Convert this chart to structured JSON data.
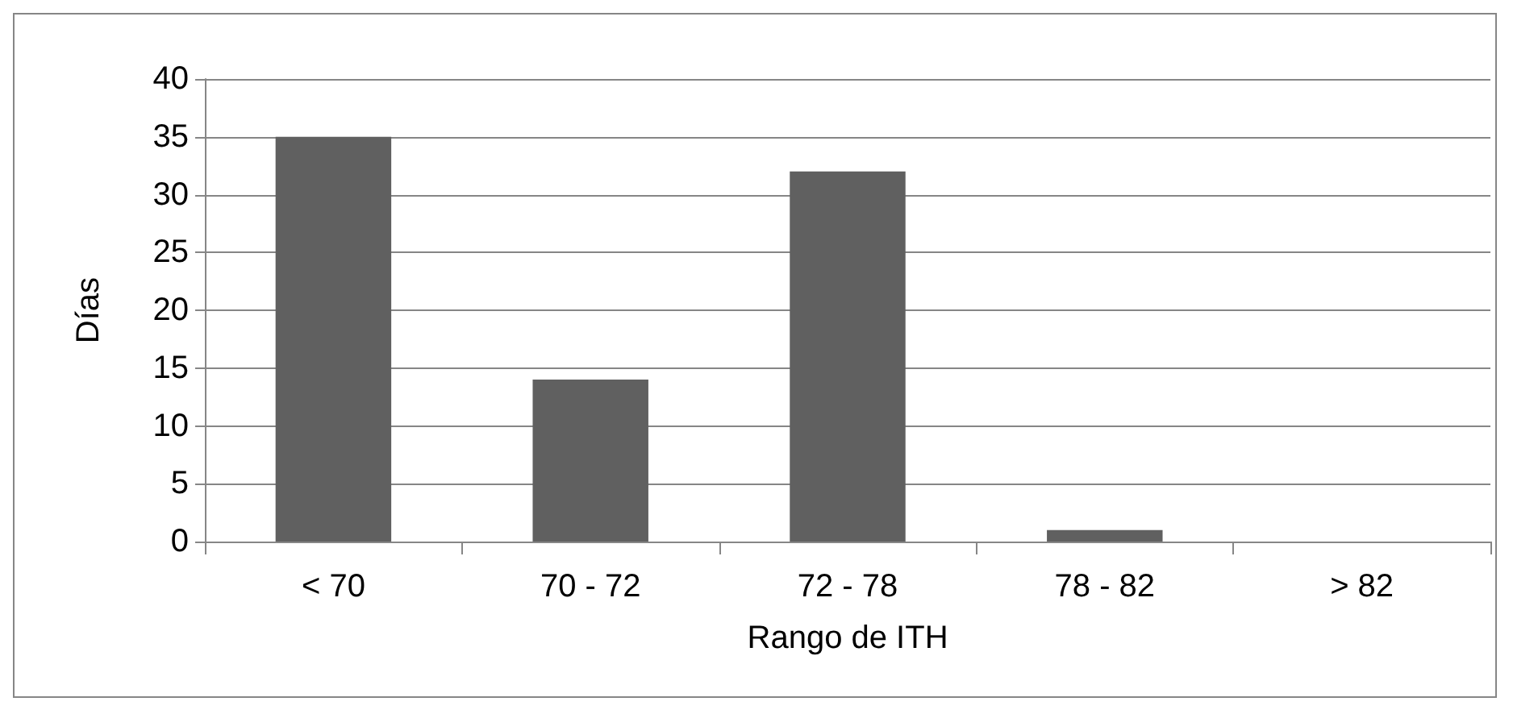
{
  "chart_data": {
    "type": "bar",
    "xlabel": "Rango de ITH",
    "ylabel": "Días",
    "categories": [
      "< 70",
      "70 - 72",
      "72 - 78",
      "78 - 82",
      "> 82"
    ],
    "values": [
      35,
      14,
      32,
      1,
      0
    ],
    "color": "#606060",
    "ylim": [
      0,
      40
    ],
    "yticks": [
      0,
      5,
      10,
      15,
      20,
      25,
      30,
      35,
      40
    ],
    "grid": "y"
  }
}
